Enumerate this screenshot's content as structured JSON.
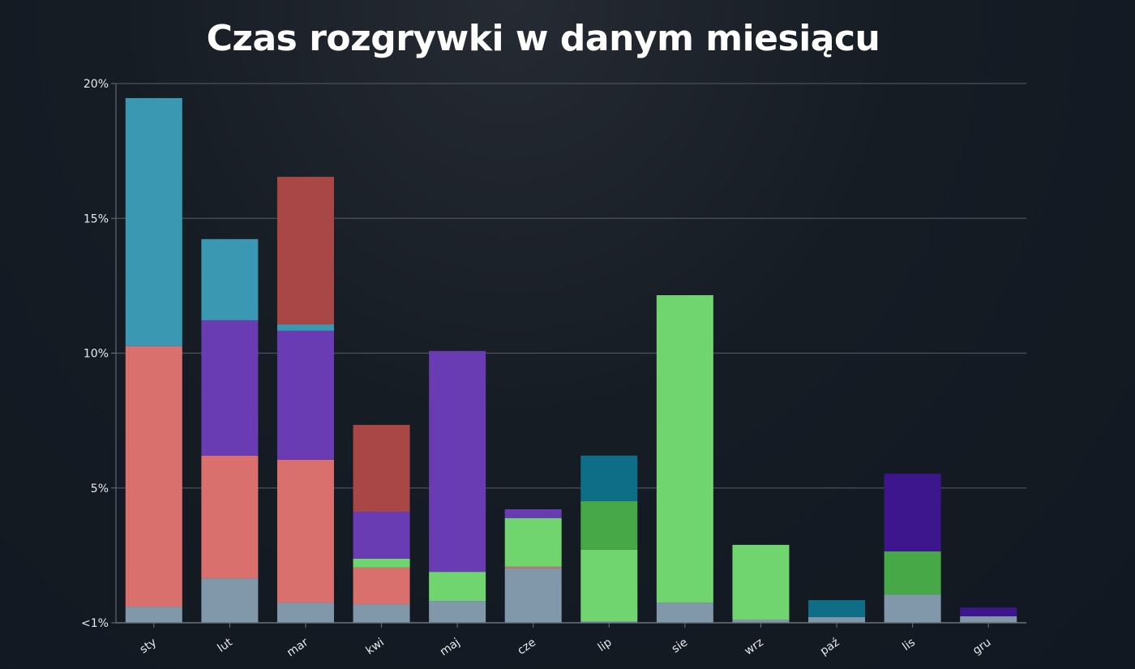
{
  "title": "Czas rozgrywki w danym miesiącu",
  "chart_data": {
    "type": "bar",
    "stacked": true,
    "title": "Czas rozgrywki w danym miesiącu",
    "xlabel": "",
    "ylabel": "",
    "ylim": [
      0,
      20
    ],
    "grid": true,
    "legend": "none",
    "y_ticks": [
      {
        "value": 0,
        "label": "<1%"
      },
      {
        "value": 5,
        "label": "5%"
      },
      {
        "value": 10,
        "label": "10%"
      },
      {
        "value": 15,
        "label": "15%"
      },
      {
        "value": 20,
        "label": "20%"
      }
    ],
    "categories": [
      "sty",
      "lut",
      "mar",
      "kwi",
      "maj",
      "cze",
      "lip",
      "sie",
      "wrz",
      "paź",
      "lis",
      "gru"
    ],
    "colors": {
      "gray": "#8198aa",
      "salmon": "#d9706e",
      "teal": "#3a98b2",
      "purple": "#6a3cb4",
      "darkred": "#a84746",
      "lightgreen": "#70d56f",
      "green": "#47a847",
      "darkteal": "#0f6e87",
      "indigo": "#3d158c"
    },
    "stacks": [
      {
        "category": "sty",
        "segments": [
          {
            "color": "gray",
            "value": 0.6
          },
          {
            "color": "salmon",
            "value": 9.66
          },
          {
            "color": "teal",
            "value": 9.2
          }
        ],
        "total": 19.46
      },
      {
        "category": "lut",
        "segments": [
          {
            "color": "gray",
            "value": 1.65
          },
          {
            "color": "salmon",
            "value": 4.55
          },
          {
            "color": "purple",
            "value": 5.02
          },
          {
            "color": "teal",
            "value": 3.01
          }
        ],
        "total": 14.23
      },
      {
        "category": "mar",
        "segments": [
          {
            "color": "gray",
            "value": 0.75
          },
          {
            "color": "salmon",
            "value": 5.3
          },
          {
            "color": "purple",
            "value": 4.78
          },
          {
            "color": "teal",
            "value": 0.24
          },
          {
            "color": "darkred",
            "value": 5.47
          }
        ],
        "total": 16.54
      },
      {
        "category": "kwi",
        "segments": [
          {
            "color": "gray",
            "value": 0.69
          },
          {
            "color": "salmon",
            "value": 1.36
          },
          {
            "color": "lightgreen",
            "value": 0.33
          },
          {
            "color": "purple",
            "value": 1.74
          },
          {
            "color": "darkred",
            "value": 3.22
          }
        ],
        "total": 7.34
      },
      {
        "category": "maj",
        "segments": [
          {
            "color": "gray",
            "value": 0.81
          },
          {
            "color": "lightgreen",
            "value": 1.08
          },
          {
            "color": "purple",
            "value": 8.19
          }
        ],
        "total": 10.08
      },
      {
        "category": "cze",
        "segments": [
          {
            "color": "gray",
            "value": 2.02
          },
          {
            "color": "salmon",
            "value": 0.06
          },
          {
            "color": "lightgreen",
            "value": 1.8
          },
          {
            "color": "purple",
            "value": 0.33
          }
        ],
        "total": 4.21
      },
      {
        "category": "lip",
        "segments": [
          {
            "color": "gray",
            "value": 0.06
          },
          {
            "color": "lightgreen",
            "value": 2.65
          },
          {
            "color": "green",
            "value": 1.8
          },
          {
            "color": "darkteal",
            "value": 1.69
          }
        ],
        "total": 6.2
      },
      {
        "category": "sie",
        "segments": [
          {
            "color": "gray",
            "value": 0.75
          },
          {
            "color": "lightgreen",
            "value": 11.4
          }
        ],
        "total": 12.15
      },
      {
        "category": "wrz",
        "segments": [
          {
            "color": "gray",
            "value": 0.12
          },
          {
            "color": "lightgreen",
            "value": 2.77
          }
        ],
        "total": 2.89
      },
      {
        "category": "paź",
        "segments": [
          {
            "color": "gray",
            "value": 0.21
          },
          {
            "color": "darkteal",
            "value": 0.63
          }
        ],
        "total": 0.84
      },
      {
        "category": "lis",
        "segments": [
          {
            "color": "gray",
            "value": 1.05
          },
          {
            "color": "green",
            "value": 1.6
          },
          {
            "color": "indigo",
            "value": 2.88
          }
        ],
        "total": 5.53
      },
      {
        "category": "gru",
        "segments": [
          {
            "color": "gray",
            "value": 0.24
          },
          {
            "color": "indigo",
            "value": 0.33
          }
        ],
        "total": 0.57
      }
    ]
  }
}
